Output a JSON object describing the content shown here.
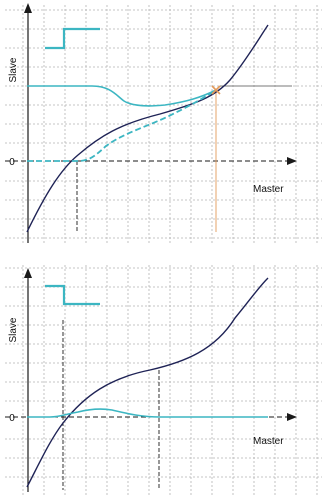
{
  "top_diagram": {
    "y_axis_label": "Slave",
    "x_axis_label": "Master",
    "zero_label": "0",
    "colors": {
      "slave_curve": "#1f2356",
      "cam_curve": "#3cb6c2",
      "marker": "#e39a5a"
    }
  },
  "bottom_diagram": {
    "y_axis_label": "Slave",
    "x_axis_label": "Master",
    "zero_label": "0",
    "colors": {
      "slave_curve": "#1f2356",
      "cam_curve": "#3cb6c2"
    }
  }
}
